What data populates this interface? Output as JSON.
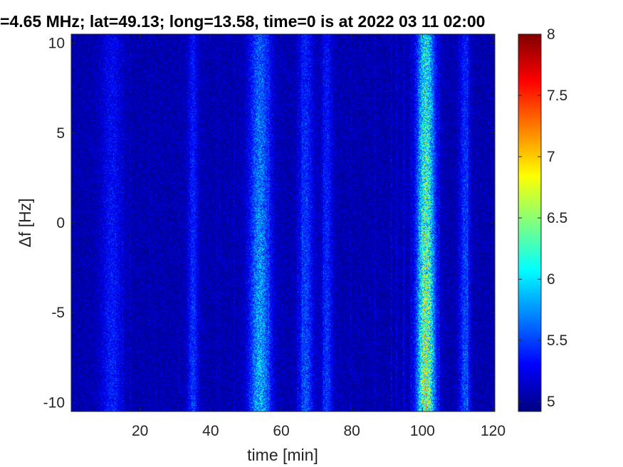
{
  "chart_data": {
    "type": "heatmap",
    "title": "=4.65 MHz;  lat=49.13; long=13.58, time=0 is at 2022 03 11 02:00",
    "xlabel": "time [min]",
    "ylabel": "Δf [Hz]",
    "xlim": [
      0.5,
      120.5
    ],
    "ylim": [
      -10.5,
      10.5
    ],
    "x_ticks": [
      20,
      40,
      60,
      80,
      100,
      120
    ],
    "y_ticks": [
      -10,
      -5,
      0,
      5,
      10
    ],
    "y_tick_labels": [
      "-10",
      "-5",
      "0",
      "5",
      "10"
    ],
    "colorbar": {
      "limits": [
        4.92,
        8
      ],
      "ticks": [
        5,
        5.5,
        6,
        6.5,
        7,
        7.5,
        8
      ],
      "tick_labels": [
        "5",
        "5.5",
        "6",
        "6.5",
        "7",
        "7.5",
        "8"
      ],
      "colormap": "jet"
    },
    "background_level": 5.0,
    "bright_bands": [
      {
        "time_min": 101,
        "width_min": 2.5,
        "peak_level": 6.9,
        "strongest_df_range": [
          -10,
          3
        ]
      },
      {
        "time_min": 54,
        "width_min": 3,
        "peak_level": 6.0,
        "strongest_df_range": [
          -10,
          6
        ]
      },
      {
        "time_min": 67,
        "width_min": 2,
        "peak_level": 5.6,
        "strongest_df_range": [
          -10,
          8
        ]
      },
      {
        "time_min": 73,
        "width_min": 1.5,
        "peak_level": 5.5,
        "strongest_df_range": [
          -10,
          8
        ]
      },
      {
        "time_min": 112,
        "width_min": 1.5,
        "peak_level": 5.6,
        "strongest_df_range": [
          -10,
          10
        ]
      },
      {
        "time_min": 35,
        "width_min": 1.5,
        "peak_level": 5.5,
        "strongest_df_range": [
          -10,
          10
        ]
      },
      {
        "time_min": 12,
        "width_min": 3,
        "peak_level": 5.4,
        "strongest_df_range": [
          -10,
          10
        ]
      }
    ]
  }
}
